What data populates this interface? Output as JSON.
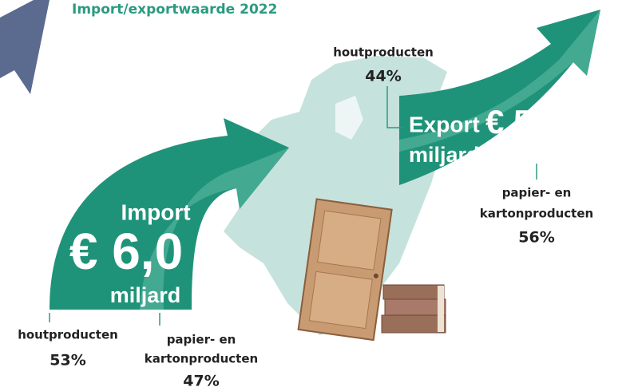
{
  "title": "Import/exportwaarde 2022",
  "import": {
    "label": "Import",
    "amount": "€ 6,0",
    "unit": "miljard",
    "segments": [
      {
        "label_lines": [
          "houtproducten"
        ],
        "share": "53%"
      },
      {
        "label_lines": [
          "papier- en",
          "kartonproducten"
        ],
        "share": "47%"
      }
    ]
  },
  "export": {
    "label": "Export",
    "amount": "€ 5,4",
    "unit": "miljard",
    "segments": [
      {
        "label_lines": [
          "houtproducten"
        ],
        "share": "44%"
      },
      {
        "label_lines": [
          "papier- en",
          "kartonproducten"
        ],
        "share": "56%"
      }
    ]
  }
}
